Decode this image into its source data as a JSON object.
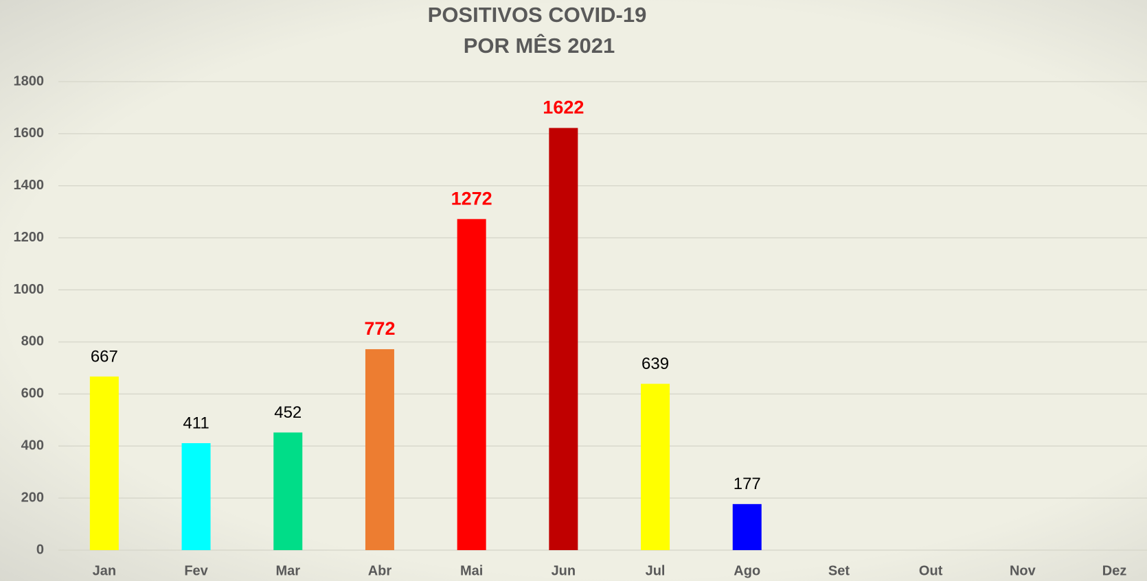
{
  "chart_data": {
    "type": "bar",
    "title": [
      "POSITIVOS COVID-19",
      "POR MÊS 2021"
    ],
    "categories": [
      "Jan",
      "Fev",
      "Mar",
      "Abr",
      "Mai",
      "Jun",
      "Jul",
      "Ago",
      "Set",
      "Out",
      "Nov",
      "Dez"
    ],
    "values": [
      667,
      411,
      452,
      772,
      1272,
      1622,
      639,
      177,
      null,
      null,
      null,
      null
    ],
    "colors": [
      "#ffff00",
      "#00ffff",
      "#00dd88",
      "#ed7d31",
      "#ff0000",
      "#c00000",
      "#ffff00",
      "#0000ff",
      null,
      null,
      null,
      null
    ],
    "value_label_colors": [
      "#000000",
      "#000000",
      "#000000",
      "#ff0000",
      "#ff0000",
      "#ff0000",
      "#000000",
      "#000000",
      null,
      null,
      null,
      null
    ],
    "value_label_weights": [
      "normal",
      "normal",
      "normal",
      "bold",
      "bold",
      "bold",
      "normal",
      "normal",
      null,
      null,
      null,
      null
    ],
    "ylim": [
      0,
      1800
    ],
    "yticks": [
      0,
      200,
      400,
      600,
      800,
      1000,
      1200,
      1400,
      1600,
      1800
    ],
    "grid": true
  }
}
